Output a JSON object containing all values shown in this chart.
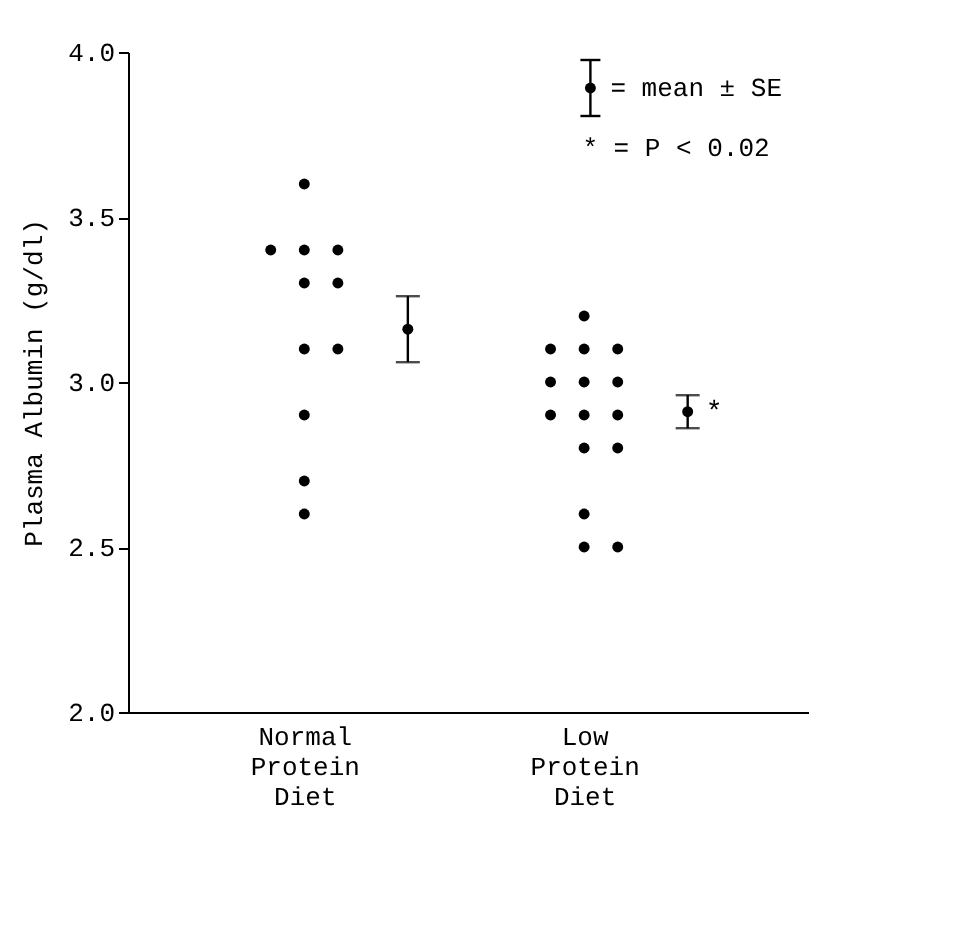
{
  "chart_data": {
    "type": "scatter",
    "categories": [
      "Normal Protein Diet",
      "Low Protein Diet"
    ],
    "ylabel": "Plasma Albumin (g/dl)",
    "ylim": [
      2.0,
      4.0
    ],
    "yticks": [
      {
        "value": 2.0,
        "label": "2.0"
      },
      2.5,
      {
        "value": 3.0,
        "label": "3.0"
      },
      3.5,
      {
        "value": 4.0,
        "label": "4.0"
      }
    ],
    "grid": false,
    "legend": "top right",
    "marker": "circle",
    "series": [
      {
        "color": "#000000",
        "x": [
          "Normal Protein Diet",
          "Normal Protein Diet",
          "Normal Protein Diet",
          "Normal Protein Diet",
          "Normal Protein Diet",
          "Normal Protein Diet",
          "Normal Protein Diet",
          "Normal Protein Diet",
          "Normal Protein Diet",
          "Normal Protein Diet",
          "Normal Protein Diet",
          "Low Protein Diet",
          "Low Protein Diet",
          "Low Protein Diet",
          "Low Protein Diet",
          "Low Protein Diet",
          "Low Protein Diet",
          "Low Protein Diet",
          "Low Protein Diet",
          "Low Protein Diet",
          "Low Protein Diet",
          "Low Protein Diet",
          "Low Protein Diet",
          "Low Protein Diet",
          "Low Protein Diet",
          "Low Protein Diet"
        ],
        "values": [
          3.6,
          3.4,
          3.4,
          3.4,
          3.3,
          3.3,
          3.1,
          3.1,
          2.9,
          2.7,
          2.6,
          3.2,
          3.1,
          3.1,
          3.1,
          3.0,
          3.0,
          3.0,
          2.9,
          2.9,
          2.9,
          2.8,
          2.8,
          2.6,
          2.5,
          2.5
        ]
      },
      {
        "name": "= mean ± SE",
        "color": "#000000",
        "x": [
          "Normal Protein Diet",
          "Low Protein Diet"
        ],
        "values": [
          3.16,
          2.91
        ],
        "errors": [
          0.1,
          0.05
        ]
      }
    ],
    "annotations": [
      "*",
      "* = P < 0.02"
    ]
  }
}
